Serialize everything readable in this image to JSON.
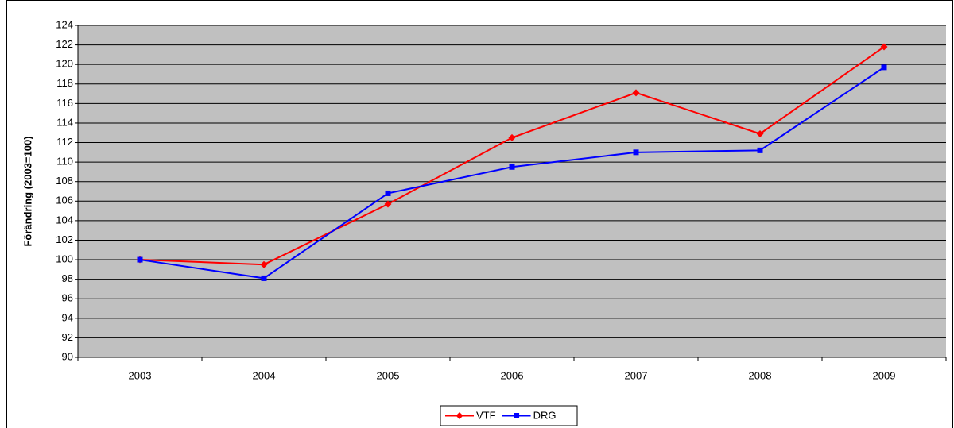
{
  "chart_data": {
    "type": "line",
    "ylabel": "Förändring (2003=100)",
    "categories": [
      "2003",
      "2004",
      "2005",
      "2006",
      "2007",
      "2008",
      "2009"
    ],
    "series": [
      {
        "name": "VTF",
        "color": "#ff0000",
        "marker": "diamond",
        "values": [
          100,
          99.5,
          105.7,
          112.5,
          117.1,
          112.9,
          121.8
        ]
      },
      {
        "name": "DRG",
        "color": "#0000ff",
        "marker": "square",
        "values": [
          100,
          98.1,
          106.8,
          109.5,
          111.0,
          111.2,
          119.7
        ]
      }
    ],
    "ylim": [
      90,
      124
    ],
    "yticks": [
      90,
      92,
      94,
      96,
      98,
      100,
      102,
      104,
      106,
      108,
      110,
      112,
      114,
      116,
      118,
      120,
      122,
      124
    ],
    "grid": true,
    "plot_background": "#c0c0c0",
    "legend": "bottom"
  }
}
